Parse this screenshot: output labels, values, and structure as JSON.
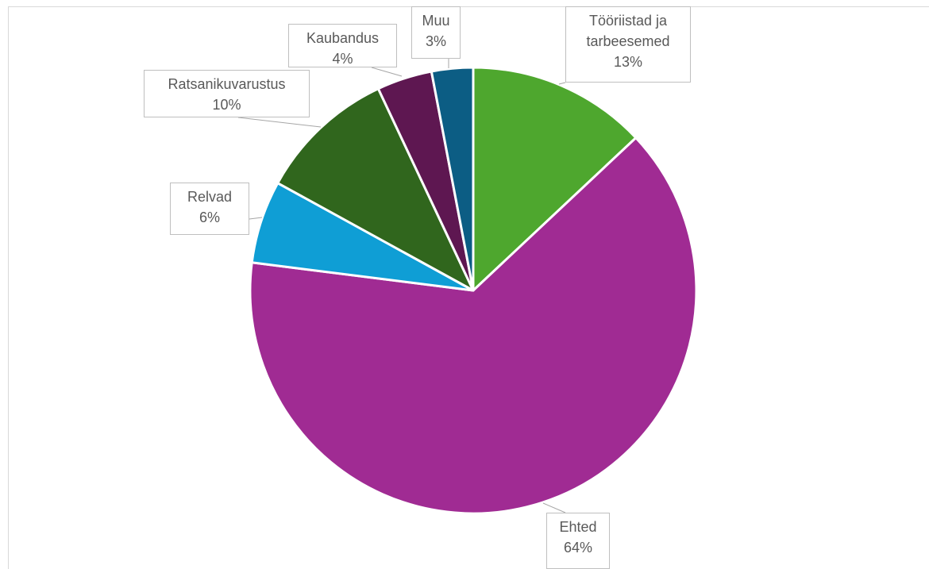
{
  "chart_data": {
    "type": "pie",
    "categories": [
      "Tööriistad ja tarbeesemed",
      "Ehted",
      "Relvad",
      "Ratsanikuvarustus",
      "Kaubandus",
      "Muu"
    ],
    "values": [
      13,
      64,
      6,
      10,
      4,
      3
    ],
    "value_labels": [
      "13%",
      "64%",
      "6%",
      "10%",
      "4%",
      "3%"
    ],
    "colors": [
      "#4ea72e",
      "#a02b93",
      "#0f9ed5",
      "#30661d",
      "#5e1751",
      "#0c5d84"
    ]
  }
}
